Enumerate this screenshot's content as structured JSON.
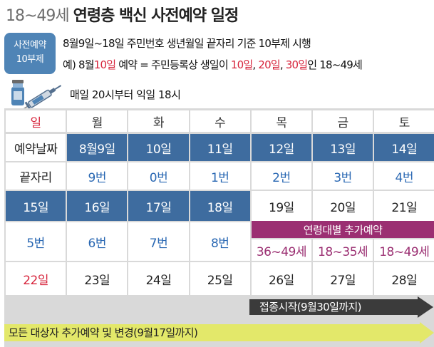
{
  "title": {
    "prefix": "18~49세",
    "main": "연령층 백신 사전예약 일정"
  },
  "badge": {
    "line1": "사전예약",
    "line2": "10부제"
  },
  "description": {
    "line1": "8월9일~18일 주민번호 생년월일 끝자리 기준 10부제 시행",
    "line2": [
      {
        "text": "예) 8월",
        "red": false
      },
      {
        "text": "10일",
        "red": true
      },
      {
        "text": " 예약 = 주민등록상 생일이 ",
        "red": false
      },
      {
        "text": "10일",
        "red": true
      },
      {
        "text": ", ",
        "red": false
      },
      {
        "text": "20일",
        "red": true
      },
      {
        "text": ", ",
        "red": false
      },
      {
        "text": "30일",
        "red": true
      },
      {
        "text": "인 18~49세",
        "red": false
      }
    ],
    "line3": "매일 20시부터 익일 18시"
  },
  "colors": {
    "blue": "#3e6c9f",
    "magenta": "#9b2f72",
    "red": "#d7263d",
    "yellow": "#e3e86a",
    "dark_arrow": "#3b3b3b"
  },
  "calendar": {
    "days": [
      "일",
      "월",
      "화",
      "수",
      "목",
      "금",
      "토"
    ],
    "reservation_label": "예약날짜",
    "digit_label": "끝자리",
    "week1_dates": [
      "8월9일",
      "10일",
      "11일",
      "12일",
      "13일",
      "14일"
    ],
    "week1_digits": [
      "9번",
      "0번",
      "1번",
      "2번",
      "3번",
      "4번"
    ],
    "week2_dates": [
      "15일",
      "16일",
      "17일",
      "18일",
      "19일",
      "20일",
      "21일"
    ],
    "week2_digits": [
      "5번",
      "6번",
      "7번",
      "8번"
    ],
    "age_banner": "연령대별 추가예약",
    "age_groups": [
      "36~49세",
      "18~35세",
      "18~49세"
    ],
    "week3_dates": [
      "22일",
      "23일",
      "24일",
      "25일",
      "26일",
      "27일",
      "28일"
    ]
  },
  "arrows": {
    "vaccination": "접종시작(9월30일까지)",
    "all_reservation": "모든 대상자 추가예약 및 변경(9월17일까지)"
  }
}
